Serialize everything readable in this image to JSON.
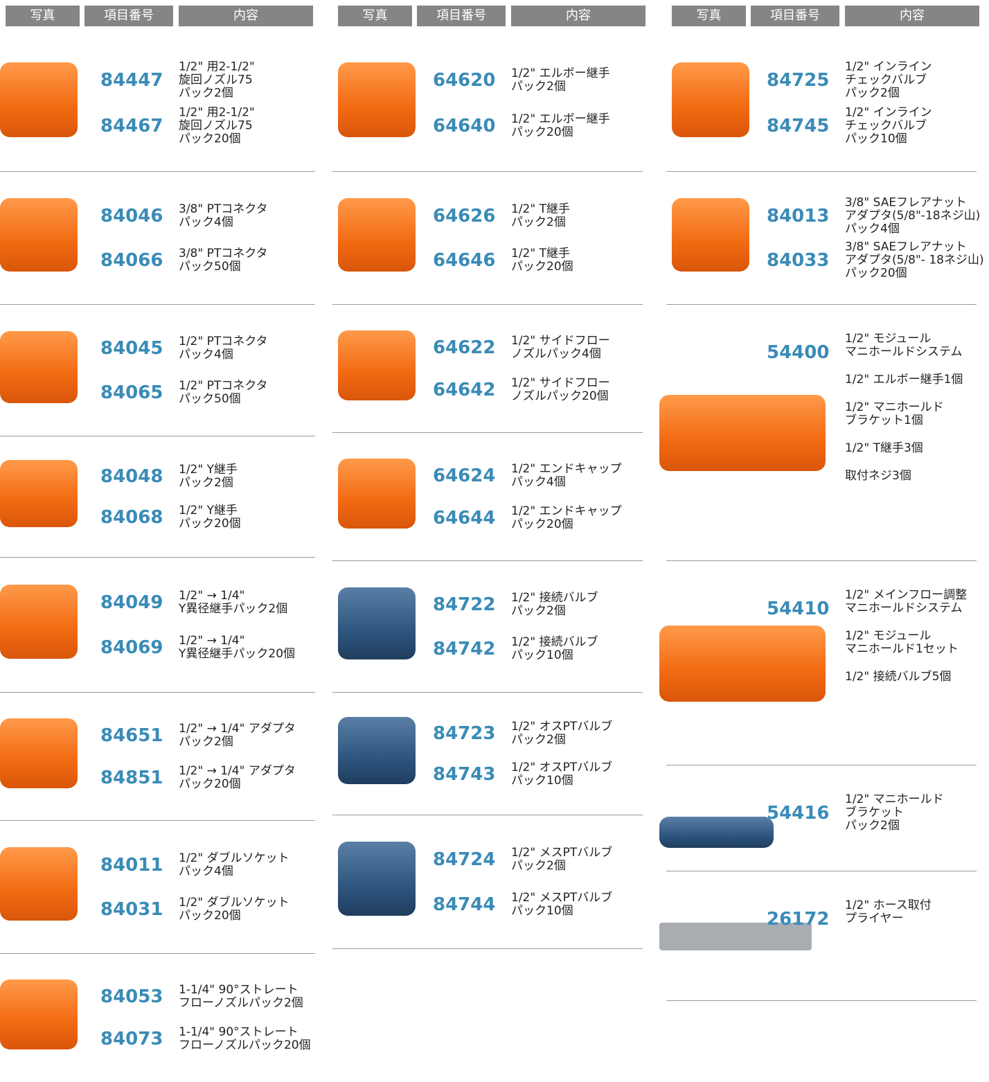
{
  "columns": [
    {
      "header": [
        "写真",
        "項目番号",
        "内容"
      ],
      "groups": [
        {
          "items": [
            {
              "code": "84447",
              "desc": [
                [
                  "1/2\" 用2-1/2\"",
                  "旋回ノズル75",
                  "パック2個"
                ]
              ]
            },
            {
              "code": "84467",
              "desc": [
                [
                  "1/2\" 用2-1/2\"",
                  "旋回ノズル75",
                  "パック20個"
                ]
              ]
            }
          ]
        },
        {
          "items": [
            {
              "code": "84046",
              "desc": [
                [
                  "3/8\" PTコネクタ",
                  "パック4個"
                ]
              ]
            },
            {
              "code": "84066",
              "desc": [
                [
                  "3/8\" PTコネクタ",
                  "パック50個"
                ]
              ]
            }
          ]
        },
        {
          "items": [
            {
              "code": "84045",
              "desc": [
                [
                  "1/2\" PTコネクタ",
                  "パック4個"
                ]
              ]
            },
            {
              "code": "84065",
              "desc": [
                [
                  "1/2\" PTコネクタ",
                  "パック50個"
                ]
              ]
            }
          ]
        },
        {
          "items": [
            {
              "code": "84048",
              "desc": [
                [
                  "1/2\" Y継手",
                  "パック2個"
                ]
              ]
            },
            {
              "code": "84068",
              "desc": [
                [
                  "1/2\" Y継手",
                  "パック20個"
                ]
              ]
            }
          ]
        },
        {
          "items": [
            {
              "code": "84049",
              "desc": [
                [
                  "1/2\" → 1/4\"",
                  "Y異径継手パック2個"
                ]
              ]
            },
            {
              "code": "84069",
              "desc": [
                [
                  "1/2\" → 1/4\"",
                  "Y異径継手パック20個"
                ]
              ]
            }
          ]
        },
        {
          "items": [
            {
              "code": "84651",
              "desc": [
                [
                  "1/2\" → 1/4\" アダプタ",
                  "パック2個"
                ]
              ]
            },
            {
              "code": "84851",
              "desc": [
                [
                  "1/2\" → 1/4\" アダプタ",
                  "パック20個"
                ]
              ]
            }
          ]
        },
        {
          "items": [
            {
              "code": "84011",
              "desc": [
                [
                  "1/2\" ダブルソケット",
                  "パック4個"
                ]
              ]
            },
            {
              "code": "84031",
              "desc": [
                [
                  "1/2\" ダブルソケット",
                  "パック20個"
                ]
              ]
            }
          ]
        },
        {
          "items": [
            {
              "code": "84053",
              "desc": [
                [
                  "1-1/4\" 90°ストレート",
                  "フローノズルパック2個"
                ]
              ]
            },
            {
              "code": "84073",
              "desc": [
                [
                  "1-1/4\" 90°ストレート",
                  "フローノズルパック20個"
                ]
              ]
            }
          ]
        }
      ]
    },
    {
      "header": [
        "写真",
        "項目番号",
        "内容"
      ],
      "groups": [
        {
          "items": [
            {
              "code": "64620",
              "desc": [
                [
                  "1/2\" エルボー継手",
                  "パック2個"
                ]
              ]
            },
            {
              "code": "64640",
              "desc": [
                [
                  "1/2\" エルボー継手",
                  "パック20個"
                ]
              ]
            }
          ]
        },
        {
          "items": [
            {
              "code": "64626",
              "desc": [
                [
                  "1/2\" T継手",
                  "パック2個"
                ]
              ]
            },
            {
              "code": "64646",
              "desc": [
                [
                  "1/2\" T継手",
                  "パック20個"
                ]
              ]
            }
          ]
        },
        {
          "items": [
            {
              "code": "64622",
              "desc": [
                [
                  "1/2\" サイドフロー",
                  "ノズルパック4個"
                ]
              ]
            },
            {
              "code": "64642",
              "desc": [
                [
                  "1/2\" サイドフロー",
                  "ノズルパック20個"
                ]
              ]
            }
          ]
        },
        {
          "items": [
            {
              "code": "64624",
              "desc": [
                [
                  "1/2\" エンドキャップ",
                  "パック4個"
                ]
              ]
            },
            {
              "code": "64644",
              "desc": [
                [
                  "1/2\" エンドキャップ",
                  "パック20個"
                ]
              ]
            }
          ]
        },
        {
          "items": [
            {
              "code": "84722",
              "desc": [
                [
                  "1/2\" 接続バルブ",
                  "パック2個"
                ]
              ]
            },
            {
              "code": "84742",
              "desc": [
                [
                  "1/2\" 接続バルブ",
                  "パック10個"
                ]
              ]
            }
          ]
        },
        {
          "items": [
            {
              "code": "84723",
              "desc": [
                [
                  "1/2\" オスPTバルブ",
                  "パック2個"
                ]
              ]
            },
            {
              "code": "84743",
              "desc": [
                [
                  "1/2\" オスPTバルブ",
                  "パック10個"
                ]
              ]
            }
          ]
        },
        {
          "items": [
            {
              "code": "84724",
              "desc": [
                [
                  "1/2\" メスPTバルブ",
                  "パック2個"
                ]
              ]
            },
            {
              "code": "84744",
              "desc": [
                [
                  "1/2\" メスPTバルブ",
                  "パック10個"
                ]
              ]
            }
          ]
        }
      ]
    },
    {
      "header": [
        "写真",
        "項目番号",
        "内容"
      ],
      "groups": [
        {
          "items": [
            {
              "code": "84725",
              "desc": [
                [
                  "1/2\" インライン",
                  "チェックバルブ",
                  "パック2個"
                ]
              ]
            },
            {
              "code": "84745",
              "desc": [
                [
                  "1/2\" インライン",
                  "チェックバルブ",
                  "パック10個"
                ]
              ]
            }
          ]
        },
        {
          "items": [
            {
              "code": "84013",
              "desc": [
                [
                  "3/8\" SAEフレアナット",
                  "アダプタ(5/8\"-18ネジ山)",
                  "パック4個"
                ]
              ]
            },
            {
              "code": "84033",
              "desc": [
                [
                  "3/8\" SAEフレアナット",
                  "アダプタ(5/8\"- 18ネジ山)",
                  "パック20個"
                ]
              ]
            }
          ]
        },
        {
          "items": [
            {
              "code": "54400",
              "desc": [
                [
                  "1/2\" モジュール",
                  "マニホールドシステム"
                ],
                [
                  "1/2\" エルボー継手1個"
                ],
                [
                  "1/2\" マニホールド",
                  "ブラケット1個"
                ],
                [
                  "1/2\" T継手3個"
                ],
                [
                  "取付ネジ3個"
                ]
              ]
            }
          ]
        },
        {
          "items": [
            {
              "code": "54410",
              "desc": [
                [
                  "1/2\" メインフロー調整",
                  "マニホールドシステム"
                ],
                [
                  "1/2\" モジュール",
                  "マニホールド1セット"
                ],
                [
                  "1/2\" 接続バルブ5個"
                ]
              ]
            }
          ]
        },
        {
          "items": [
            {
              "code": "54416",
              "desc": [
                [
                  "1/2\" マニホールド",
                  "ブラケット",
                  "パック2個"
                ]
              ]
            }
          ]
        },
        {
          "items": [
            {
              "code": "26172",
              "desc": [
                [
                  "1/2\" ホース取付",
                  "プライヤー"
                ]
              ]
            }
          ]
        }
      ]
    }
  ]
}
